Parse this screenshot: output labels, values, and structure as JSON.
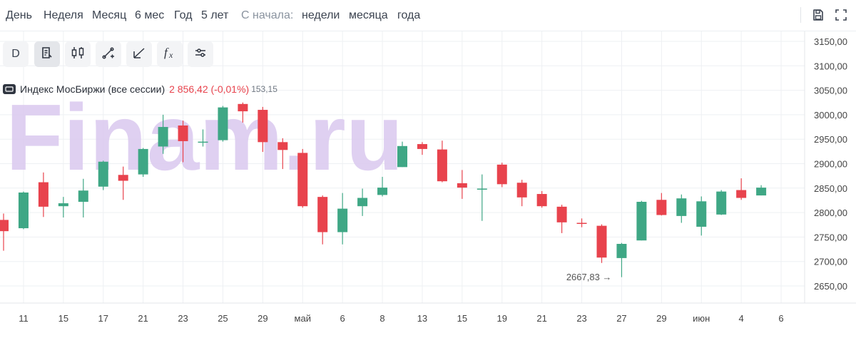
{
  "toolbar": {
    "ranges": [
      "День",
      "Неделя",
      "Месяц",
      "6 мес",
      "Год",
      "5 лет"
    ],
    "since_label": "С начала:",
    "since_options": [
      "недели",
      "месяца",
      "года"
    ],
    "save_icon": "save-icon",
    "fullscreen_icon": "fullscreen-icon"
  },
  "tools": [
    {
      "label": "D",
      "icon": "interval-d",
      "active": false
    },
    {
      "label": "",
      "icon": "chart-settings-icon",
      "active": true
    },
    {
      "label": "",
      "icon": "candles-icon",
      "active": false
    },
    {
      "label": "",
      "icon": "line-tool-icon",
      "active": false
    },
    {
      "label": "",
      "icon": "draw-tool-icon",
      "active": false
    },
    {
      "label": "",
      "icon": "indicators-fx-icon",
      "active": false
    },
    {
      "label": "",
      "icon": "settings-sliders-icon",
      "active": false
    }
  ],
  "legend": {
    "name": "Индекс МосБиржи (все сессии)",
    "price": "2 856,42 (-0,01%)",
    "tail": "153,15",
    "price_color": "#e8434d"
  },
  "watermark": "Finam.ru",
  "colors": {
    "up": "#3fa785",
    "down": "#e8434d",
    "grid": "#eef0f3",
    "axis_text": "#444",
    "axis_border": "#e3e6ea"
  },
  "chart_data": {
    "type": "candlestick",
    "y_ticks": [
      "3150,00",
      "3100,00",
      "3050,00",
      "3000,00",
      "2950,00",
      "2900,00",
      "2850,00",
      "2800,00",
      "2750,00",
      "2700,00",
      "2650,00"
    ],
    "y_tick_values": [
      3150,
      3100,
      3050,
      3000,
      2950,
      2900,
      2850,
      2800,
      2750,
      2700,
      2650
    ],
    "ylim": [
      2620,
      3165
    ],
    "x_ticks": [
      {
        "label": "11",
        "i": 1
      },
      {
        "label": "15",
        "i": 3
      },
      {
        "label": "17",
        "i": 5
      },
      {
        "label": "21",
        "i": 7
      },
      {
        "label": "23",
        "i": 9
      },
      {
        "label": "25",
        "i": 11
      },
      {
        "label": "29",
        "i": 13
      },
      {
        "label": "май",
        "i": 15
      },
      {
        "label": "6",
        "i": 17
      },
      {
        "label": "8",
        "i": 19
      },
      {
        "label": "13",
        "i": 21
      },
      {
        "label": "15",
        "i": 23
      },
      {
        "label": "19",
        "i": 25
      },
      {
        "label": "21",
        "i": 27
      },
      {
        "label": "23",
        "i": 29
      },
      {
        "label": "27",
        "i": 31
      },
      {
        "label": "29",
        "i": 33
      },
      {
        "label": "июн",
        "i": 35
      },
      {
        "label": "4",
        "i": 37
      },
      {
        "label": "6",
        "i": 39
      }
    ],
    "candles": [
      {
        "o": 2785,
        "h": 2798,
        "l": 2722,
        "c": 2762
      },
      {
        "o": 2768,
        "h": 2843,
        "l": 2766,
        "c": 2841
      },
      {
        "o": 2862,
        "h": 2882,
        "l": 2791,
        "c": 2812
      },
      {
        "o": 2813,
        "h": 2832,
        "l": 2790,
        "c": 2819
      },
      {
        "o": 2822,
        "h": 2869,
        "l": 2790,
        "c": 2845
      },
      {
        "o": 2853,
        "h": 2906,
        "l": 2846,
        "c": 2904
      },
      {
        "o": 2877,
        "h": 2894,
        "l": 2826,
        "c": 2865
      },
      {
        "o": 2878,
        "h": 2932,
        "l": 2873,
        "c": 2930
      },
      {
        "o": 2935,
        "h": 3000,
        "l": 2920,
        "c": 2975
      },
      {
        "o": 2978,
        "h": 2988,
        "l": 2903,
        "c": 2946
      },
      {
        "o": 2945,
        "h": 2970,
        "l": 2935,
        "c": 2945
      },
      {
        "o": 2948,
        "h": 3018,
        "l": 2945,
        "c": 3015
      },
      {
        "o": 3022,
        "h": 3025,
        "l": 2984,
        "c": 3007
      },
      {
        "o": 3010,
        "h": 3016,
        "l": 2924,
        "c": 2944
      },
      {
        "o": 2944,
        "h": 2952,
        "l": 2889,
        "c": 2928
      },
      {
        "o": 2922,
        "h": 2930,
        "l": 2810,
        "c": 2813
      },
      {
        "o": 2832,
        "h": 2835,
        "l": 2735,
        "c": 2760
      },
      {
        "o": 2760,
        "h": 2840,
        "l": 2735,
        "c": 2808
      },
      {
        "o": 2813,
        "h": 2849,
        "l": 2793,
        "c": 2830
      },
      {
        "o": 2836,
        "h": 2873,
        "l": 2833,
        "c": 2851
      },
      {
        "o": 2893,
        "h": 2945,
        "l": 2893,
        "c": 2936
      },
      {
        "o": 2940,
        "h": 2944,
        "l": 2918,
        "c": 2930
      },
      {
        "o": 2929,
        "h": 2947,
        "l": 2862,
        "c": 2864
      },
      {
        "o": 2860,
        "h": 2887,
        "l": 2828,
        "c": 2851
      },
      {
        "o": 2849,
        "h": 2878,
        "l": 2783,
        "c": 2849
      },
      {
        "o": 2898,
        "h": 2902,
        "l": 2852,
        "c": 2858
      },
      {
        "o": 2861,
        "h": 2867,
        "l": 2813,
        "c": 2831
      },
      {
        "o": 2838,
        "h": 2844,
        "l": 2810,
        "c": 2813
      },
      {
        "o": 2812,
        "h": 2816,
        "l": 2758,
        "c": 2780
      },
      {
        "o": 2779,
        "h": 2788,
        "l": 2770,
        "c": 2777
      },
      {
        "o": 2773,
        "h": 2776,
        "l": 2697,
        "c": 2708
      },
      {
        "o": 2707,
        "h": 2738,
        "l": 2668,
        "c": 2736
      },
      {
        "o": 2743,
        "h": 2824,
        "l": 2743,
        "c": 2822
      },
      {
        "o": 2826,
        "h": 2840,
        "l": 2794,
        "c": 2795
      },
      {
        "o": 2793,
        "h": 2837,
        "l": 2779,
        "c": 2829
      },
      {
        "o": 2771,
        "h": 2833,
        "l": 2753,
        "c": 2823
      },
      {
        "o": 2796,
        "h": 2846,
        "l": 2795,
        "c": 2843
      },
      {
        "o": 2846,
        "h": 2870,
        "l": 2826,
        "c": 2830
      },
      {
        "o": 2835,
        "h": 2856,
        "l": 2835,
        "c": 2851
      }
    ],
    "low_annotation": {
      "label": "2667,83",
      "value": 2667.83,
      "i": 31
    }
  }
}
